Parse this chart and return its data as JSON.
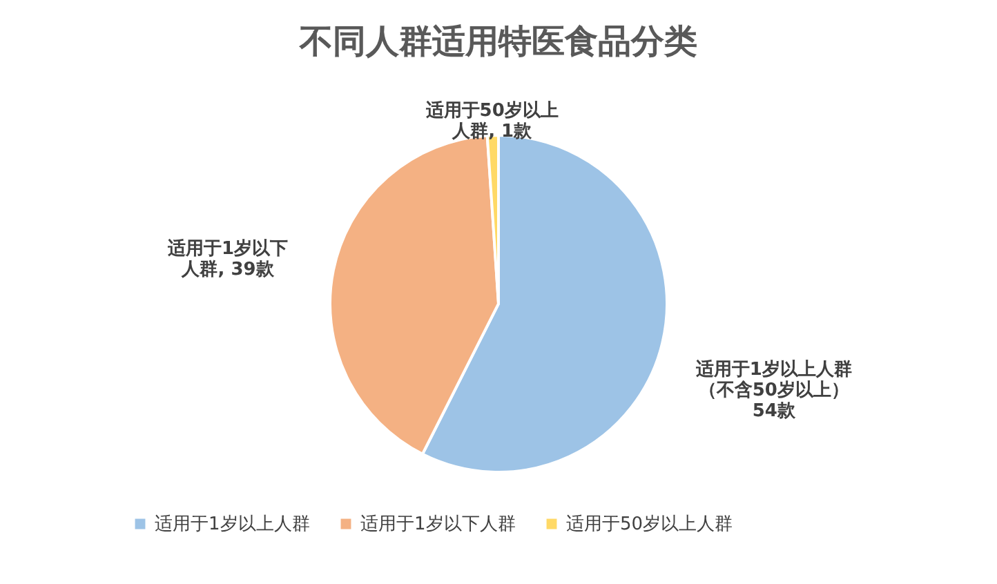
{
  "chart_data": {
    "type": "pie",
    "title": "不同人群适用特医食品分类",
    "categories": [
      "适用于1岁以上人群",
      "适用于1岁以下人群",
      "适用于50岁以上人群"
    ],
    "values": [
      54,
      39,
      1
    ],
    "colors": [
      "#9dc3e6",
      "#f4b183",
      "#ffd966"
    ],
    "value_labels": [
      "适用于1岁以上人群（不含50岁以上）54款",
      "适用于1岁以下人群, 39款",
      "适用于50岁以上人群, 1款"
    ],
    "legend": "bottom"
  }
}
